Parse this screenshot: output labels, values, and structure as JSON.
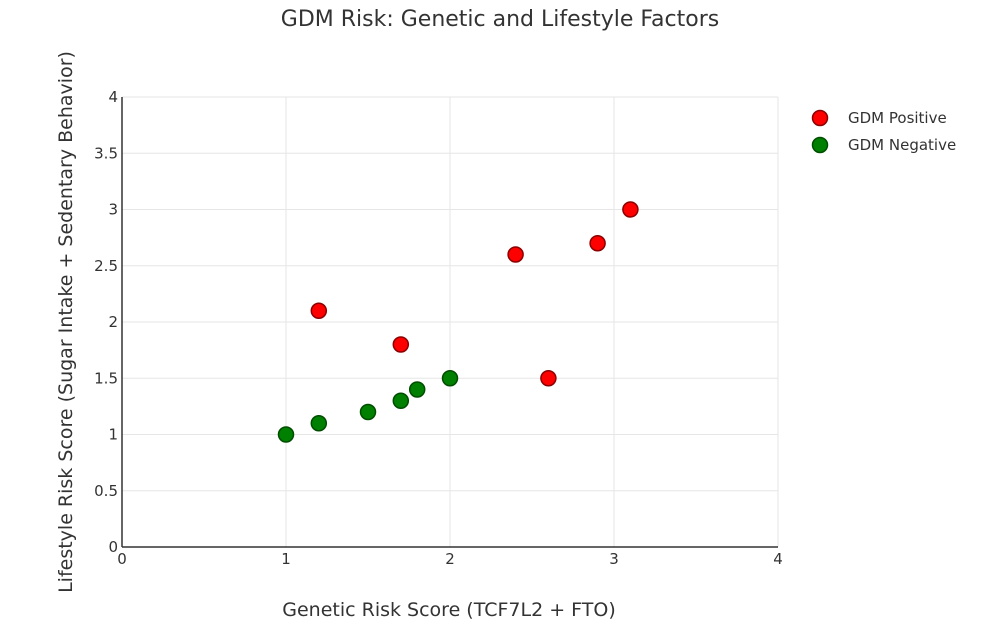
{
  "chart_data": {
    "type": "scatter",
    "title": "GDM Risk: Genetic and Lifestyle Factors",
    "xlabel": "Genetic Risk Score (TCF7L2 + FTO)",
    "ylabel": "Lifestyle Risk Score (Sugar Intake + Sedentary Behavior)",
    "xlim": [
      0,
      4
    ],
    "ylim": [
      0,
      4
    ],
    "x_ticks": [
      0,
      1,
      2,
      3,
      4
    ],
    "y_ticks": [
      0,
      0.5,
      1,
      1.5,
      2,
      2.5,
      3,
      3.5,
      4
    ],
    "x_tick_labels": [
      "0",
      "1",
      "2",
      "3",
      "4"
    ],
    "y_tick_labels": [
      "0",
      "0.5",
      "1",
      "1.5",
      "2",
      "2.5",
      "3",
      "3.5",
      "4"
    ],
    "grid": true,
    "legend_position": "top-right",
    "series": [
      {
        "name": "GDM Positive",
        "color": "#ff0000",
        "edge_color": "#8b0000",
        "x": [
          1.2,
          1.7,
          2.4,
          2.6,
          2.9,
          3.1
        ],
        "y": [
          2.1,
          1.8,
          2.6,
          1.5,
          2.7,
          3.0
        ]
      },
      {
        "name": "GDM Negative",
        "color": "#008000",
        "edge_color": "#004d00",
        "x": [
          1.0,
          1.2,
          1.5,
          1.7,
          1.8,
          2.0
        ],
        "y": [
          1.0,
          1.1,
          1.2,
          1.3,
          1.4,
          1.5
        ]
      }
    ]
  }
}
